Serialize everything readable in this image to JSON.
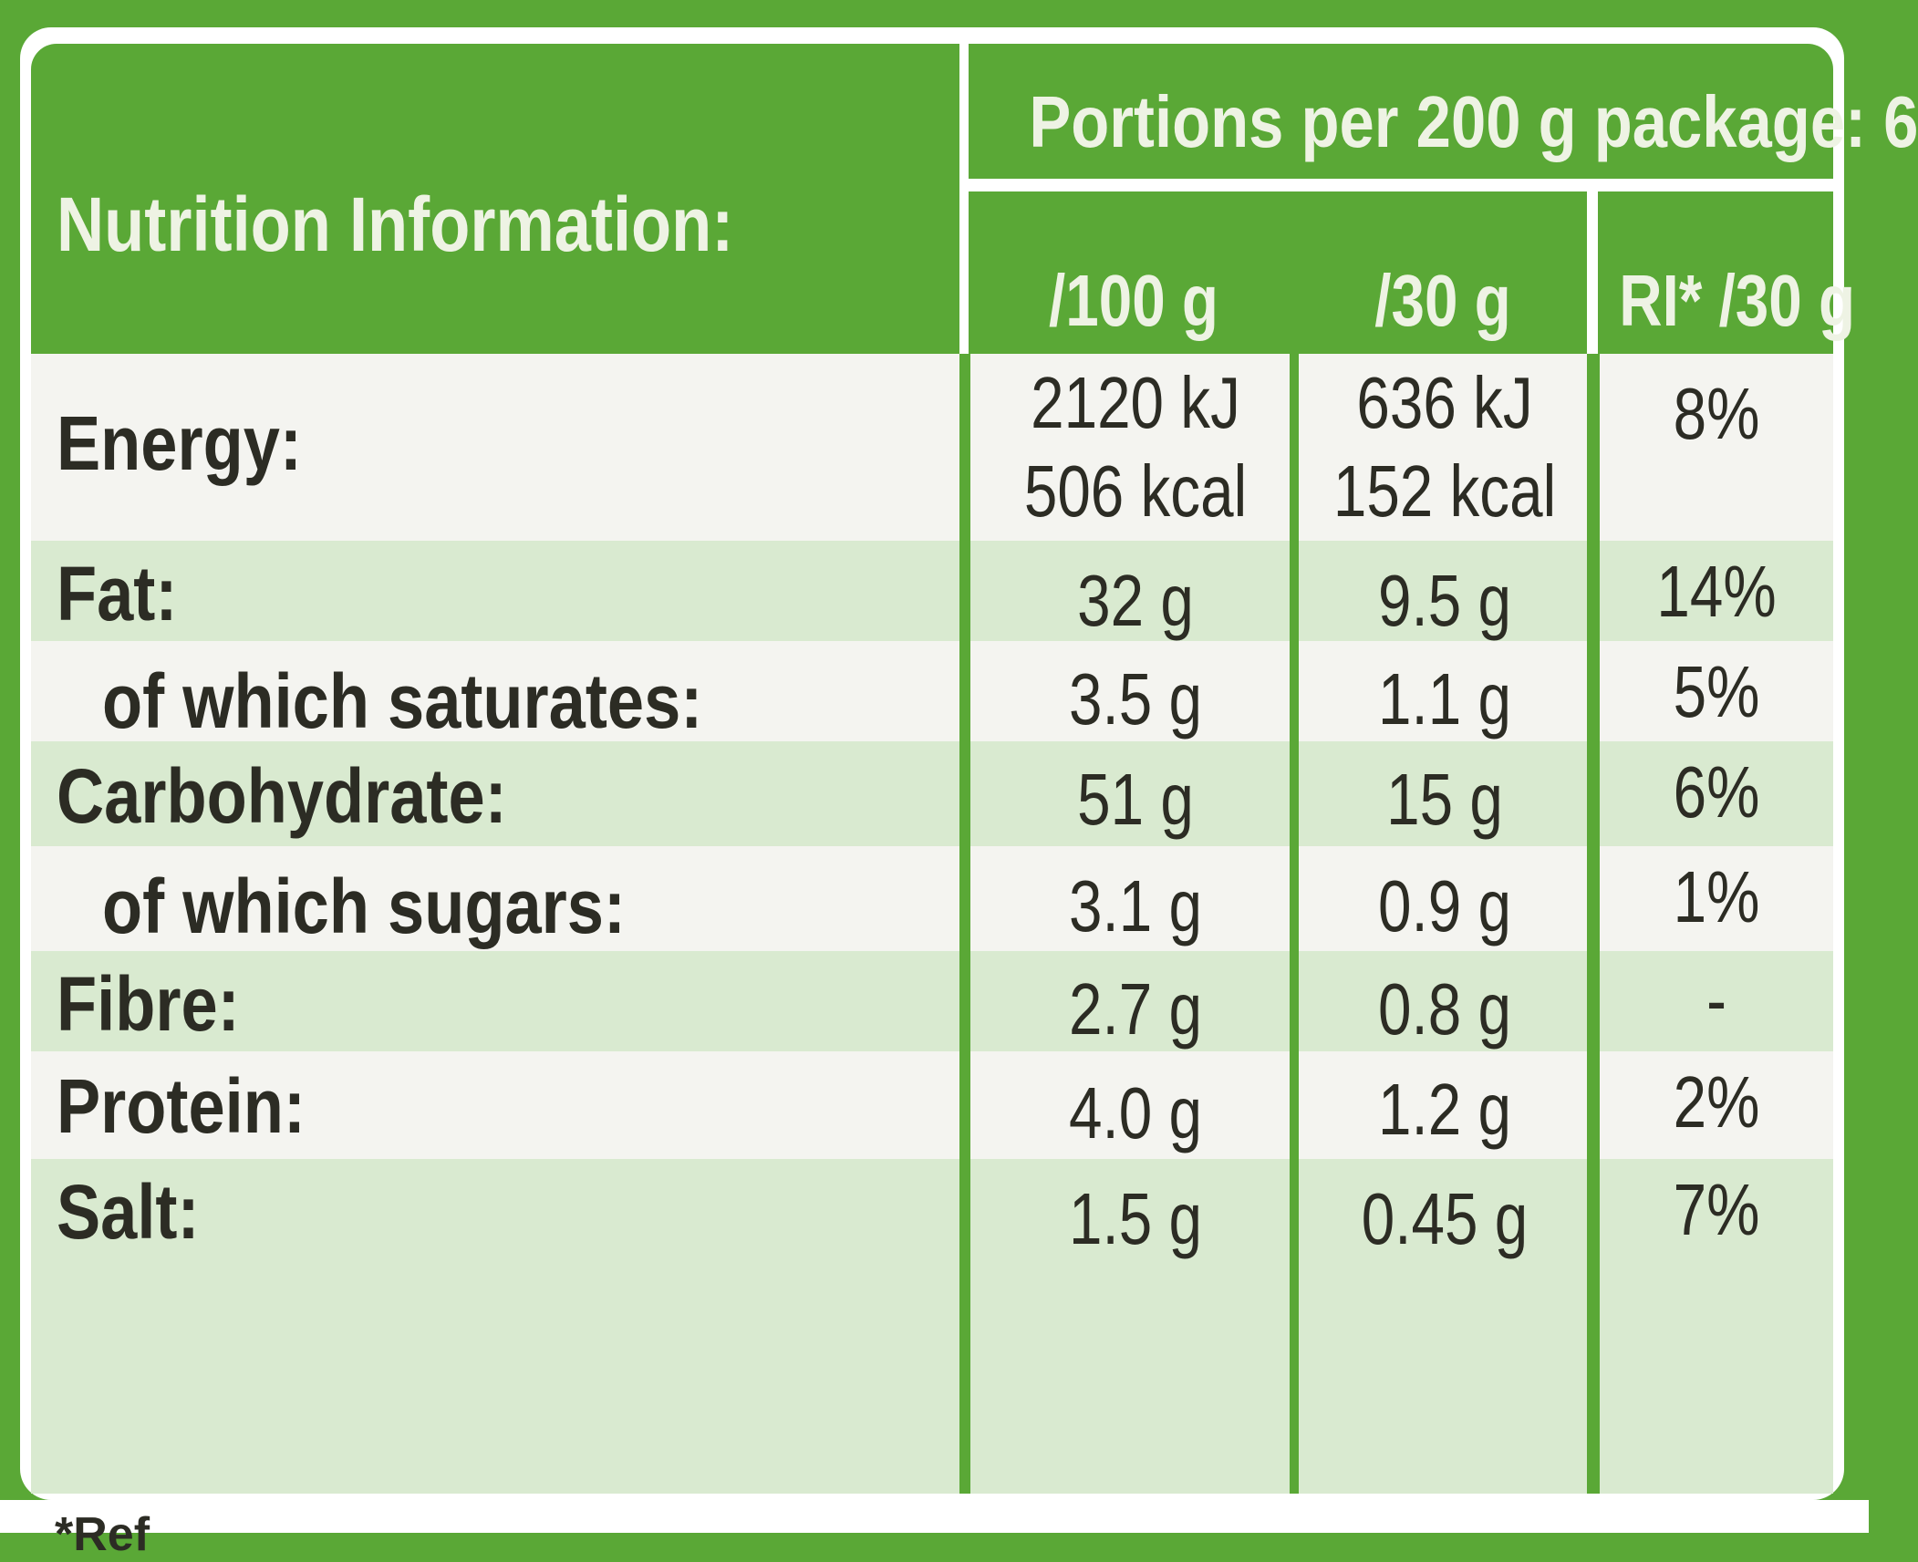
{
  "title": "Nutrition Information:",
  "portions": "Portions per 200 g package: 6",
  "columns": [
    "/100 g",
    "/30 g",
    "RI* /30 g"
  ],
  "rows": [
    {
      "label": "Energy:",
      "per100": "2120 kJ",
      "per100b": "506 kcal",
      "per30": "636 kJ",
      "per30b": "152 kcal",
      "ri": "8%"
    },
    {
      "label": "Fat:",
      "per100": "32 g",
      "per30": "9.5 g",
      "ri": "14%"
    },
    {
      "label": "of which saturates:",
      "per100": "3.5 g",
      "per30": "1.1 g",
      "ri": "5%"
    },
    {
      "label": "Carbohydrate:",
      "per100": "51 g",
      "per30": "15 g",
      "ri": "6%"
    },
    {
      "label": "of which sugars:",
      "per100": "3.1 g",
      "per30": "0.9 g",
      "ri": "1%"
    },
    {
      "label": "Fibre:",
      "per100": "2.7 g",
      "per30": "0.8 g",
      "ri": "-"
    },
    {
      "label": "Protein:",
      "per100": "4.0 g",
      "per30": "1.2 g",
      "ri": "2%"
    },
    {
      "label": "Salt:",
      "per100": "1.5 g",
      "per30": "0.45 g",
      "ri": "7%"
    }
  ],
  "footer": "*Ref",
  "colors": {
    "green": "#5aa836",
    "tint": "#d9ead0",
    "text": "#2c2c24"
  }
}
